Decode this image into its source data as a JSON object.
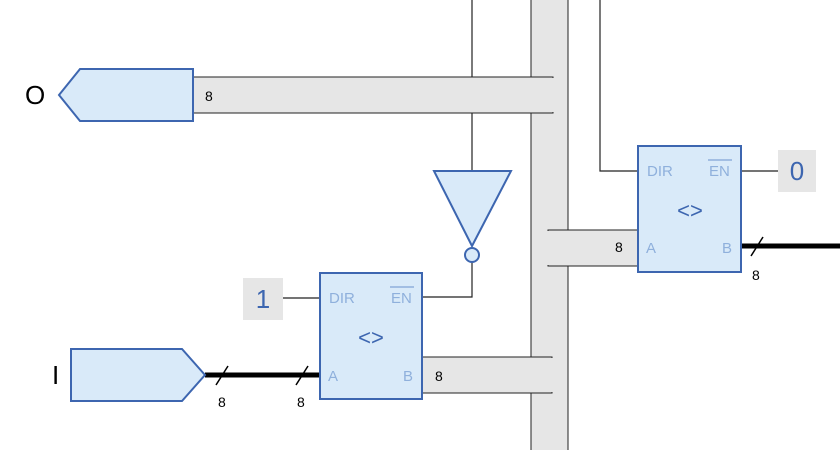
{
  "ports": {
    "output_label": "O",
    "input_label": "I"
  },
  "constants": {
    "left": "1",
    "right": "0"
  },
  "left_buffer": {
    "dir": "DIR",
    "en": "EN",
    "symbol": "<>",
    "a": "A",
    "b": "B"
  },
  "right_buffer": {
    "dir": "DIR",
    "en": "EN",
    "symbol": "<>",
    "a": "A",
    "b": "B"
  },
  "bus_widths": {
    "output_bus": "8",
    "left_b_bus": "8",
    "right_a_bus": "8",
    "input_tick_1": "8",
    "input_tick_2": "8",
    "right_b_tick": "8"
  },
  "colors": {
    "component_fill": "#d9eaf9",
    "component_stroke": "#3d66b0",
    "pin_text": "#8fb0dc",
    "bus_fill": "#e6e6e6"
  }
}
